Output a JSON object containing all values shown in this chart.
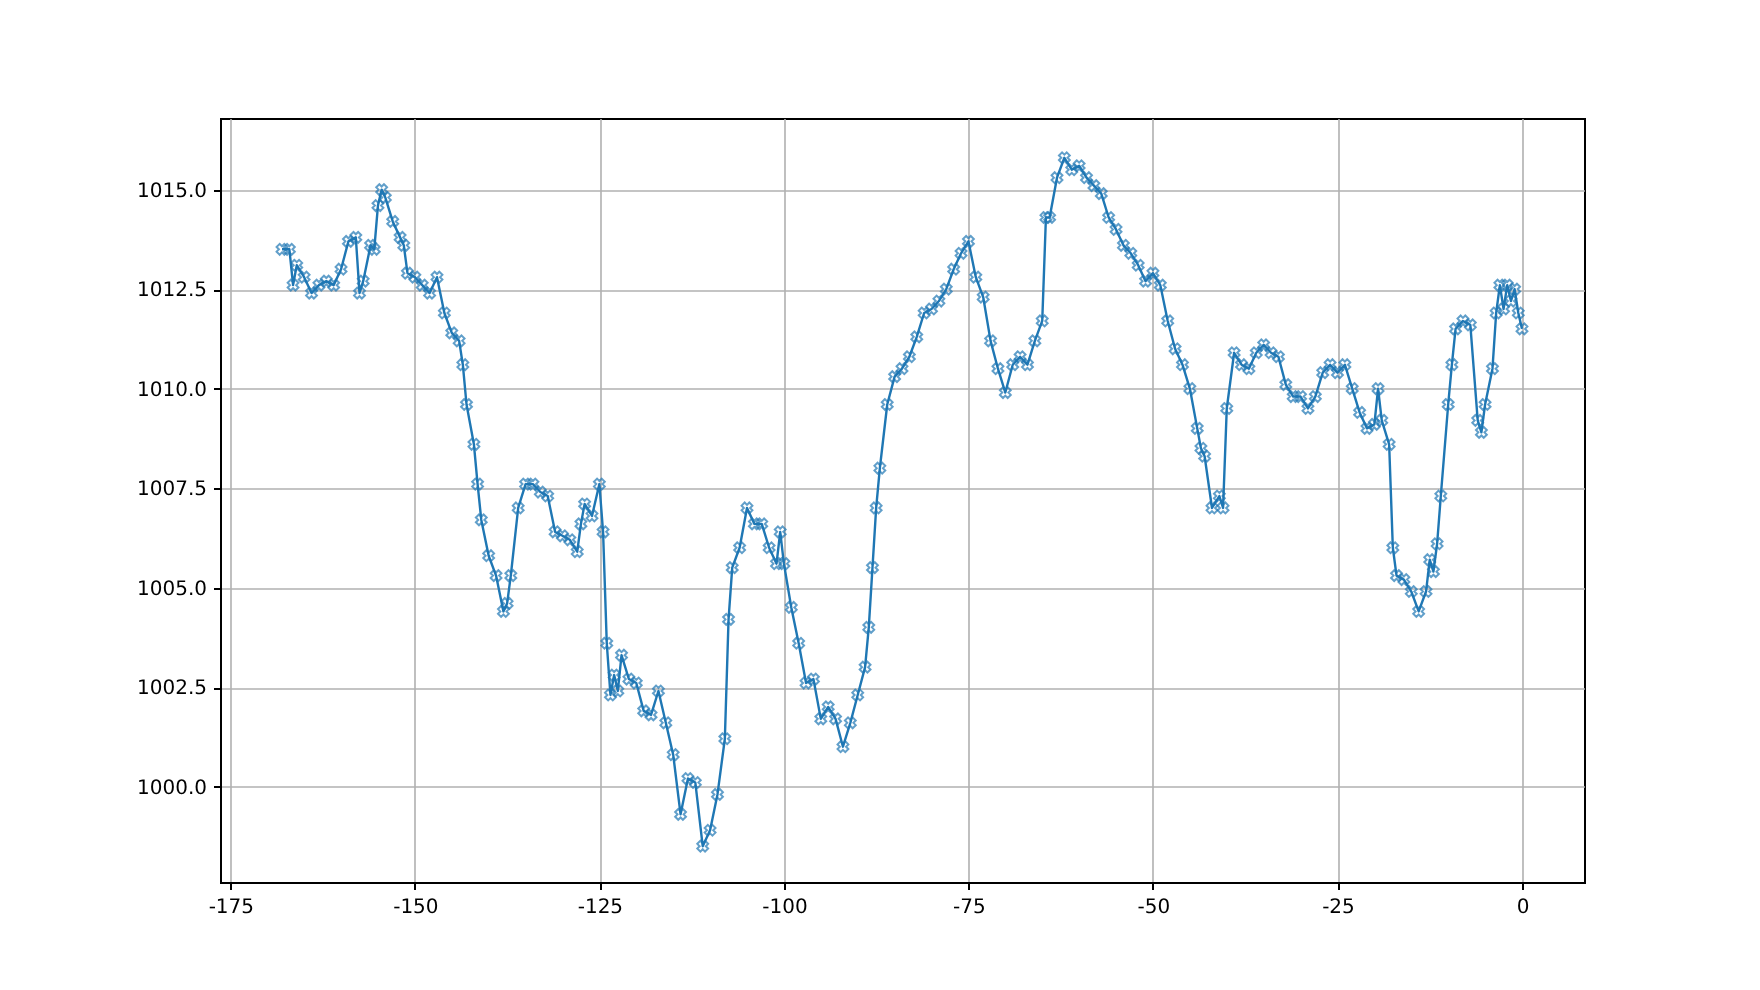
{
  "chart_data": {
    "type": "line",
    "marker": "cross",
    "grid": true,
    "xlim": [
      -176.4,
      8.4
    ],
    "xticks": [
      -175,
      -150,
      -125,
      -100,
      -75,
      -50,
      -25,
      0
    ],
    "ylim": [
      997.6,
      1016.8
    ],
    "yticks": [
      {
        "value": 1000,
        "label": "1000.0"
      },
      {
        "value": 1002.5,
        "label": "1002.5"
      },
      {
        "value": 1005,
        "label": "1005.0"
      },
      {
        "value": 1007.5,
        "label": "1007.5"
      },
      {
        "value": 1010,
        "label": "1010.0"
      },
      {
        "value": 1012.5,
        "label": "1012.5"
      },
      {
        "value": 1015,
        "label": "1015.0"
      }
    ],
    "x": [
      -168,
      -167,
      -166.5,
      -166,
      -165,
      -164,
      -163,
      -162,
      -161,
      -160,
      -159,
      -158,
      -157.5,
      -157,
      -156,
      -155.5,
      -155,
      -154.5,
      -154,
      -153,
      -152,
      -151.5,
      -151,
      -150,
      -149,
      -148,
      -147,
      -146,
      -145,
      -144,
      -143.5,
      -143,
      -142,
      -141.5,
      -141,
      -140,
      -139,
      -138,
      -137.5,
      -137,
      -136,
      -135,
      -134,
      -133,
      -132,
      -131,
      -130,
      -129,
      -128,
      -127.5,
      -127,
      -126,
      -125,
      -124.5,
      -124,
      -123.5,
      -123,
      -122.5,
      -122,
      -121,
      -120,
      -119,
      -118,
      -117,
      -116,
      -115,
      -114,
      -113,
      -112,
      -111,
      -110,
      -109,
      -108,
      -107.5,
      -107,
      -106,
      -105,
      -104,
      -103,
      -102,
      -101,
      -100.5,
      -100,
      -99,
      -98,
      -97,
      -96,
      -95,
      -94,
      -93,
      -92,
      -91,
      -90,
      -89,
      -88.5,
      -88,
      -87.5,
      -87,
      -86,
      -85,
      -84,
      -83,
      -82,
      -81,
      -80,
      -79,
      -78,
      -77,
      -76,
      -75,
      -74,
      -73,
      -72,
      -71,
      -70,
      -69,
      -68,
      -67,
      -66,
      -65,
      -64.5,
      -64,
      -63,
      -62,
      -61,
      -60,
      -59,
      -58,
      -57,
      -56,
      -55,
      -54,
      -53,
      -52,
      -51,
      -50,
      -49,
      -48,
      -47,
      -46,
      -45,
      -44,
      -43.5,
      -43,
      -42,
      -41,
      -40.5,
      -40,
      -39,
      -38,
      -37,
      -36,
      -35,
      -34,
      -33,
      -32,
      -31,
      -30,
      -29,
      -28,
      -27,
      -26,
      -25,
      -24,
      -23,
      -22,
      -21,
      -20,
      -19.5,
      -19,
      -18,
      -17.5,
      -17,
      -16,
      -15,
      -14,
      -13,
      -12.5,
      -12,
      -11.5,
      -11,
      -10,
      -9.5,
      -9,
      -8,
      -7,
      -6,
      -5.5,
      -5,
      -4,
      -3.5,
      -3,
      -2.5,
      -2,
      -1.5,
      -1,
      -0.5,
      0
    ],
    "series": [
      {
        "color": "#1f77b4",
        "values": [
          1013.5,
          1013.5,
          1012.6,
          1013.1,
          1012.8,
          1012.4,
          1012.6,
          1012.7,
          1012.6,
          1013.0,
          1013.7,
          1013.8,
          1012.4,
          1012.7,
          1013.6,
          1013.5,
          1014.6,
          1015.0,
          1014.8,
          1014.2,
          1013.8,
          1013.6,
          1012.9,
          1012.8,
          1012.6,
          1012.4,
          1012.8,
          1011.9,
          1011.4,
          1011.2,
          1010.6,
          1009.6,
          1008.6,
          1007.6,
          1006.7,
          1005.8,
          1005.3,
          1004.4,
          1004.6,
          1005.3,
          1007.0,
          1007.6,
          1007.6,
          1007.4,
          1007.3,
          1006.4,
          1006.3,
          1006.2,
          1005.9,
          1006.6,
          1007.1,
          1006.8,
          1007.6,
          1006.4,
          1003.6,
          1002.3,
          1002.8,
          1002.4,
          1003.3,
          1002.7,
          1002.6,
          1001.9,
          1001.8,
          1002.4,
          1001.6,
          1000.8,
          999.3,
          1000.2,
          1000.1,
          998.5,
          998.9,
          999.8,
          1001.2,
          1004.2,
          1005.5,
          1006.0,
          1007.0,
          1006.6,
          1006.6,
          1006.0,
          1005.6,
          1006.4,
          1005.6,
          1004.5,
          1003.6,
          1002.6,
          1002.7,
          1001.7,
          1002.0,
          1001.7,
          1001.0,
          1001.6,
          1002.3,
          1003.0,
          1004.0,
          1005.5,
          1007.0,
          1008.0,
          1009.6,
          1010.3,
          1010.5,
          1010.8,
          1011.3,
          1011.9,
          1012.0,
          1012.2,
          1012.5,
          1013.0,
          1013.4,
          1013.7,
          1012.8,
          1012.3,
          1011.2,
          1010.5,
          1009.9,
          1010.6,
          1010.8,
          1010.6,
          1011.2,
          1011.7,
          1014.3,
          1014.3,
          1015.3,
          1015.8,
          1015.5,
          1015.6,
          1015.3,
          1015.1,
          1014.9,
          1014.3,
          1014.0,
          1013.6,
          1013.4,
          1013.1,
          1012.7,
          1012.9,
          1012.6,
          1011.7,
          1011.0,
          1010.6,
          1010.0,
          1009.0,
          1008.5,
          1008.3,
          1007.0,
          1007.3,
          1007.0,
          1009.5,
          1010.9,
          1010.6,
          1010.5,
          1010.9,
          1011.1,
          1010.9,
          1010.8,
          1010.1,
          1009.8,
          1009.8,
          1009.5,
          1009.8,
          1010.4,
          1010.6,
          1010.4,
          1010.6,
          1010.0,
          1009.4,
          1009.0,
          1009.1,
          1010.0,
          1009.2,
          1008.6,
          1006.0,
          1005.3,
          1005.2,
          1004.9,
          1004.4,
          1004.9,
          1005.7,
          1005.4,
          1006.1,
          1007.3,
          1009.6,
          1010.6,
          1011.5,
          1011.7,
          1011.6,
          1009.2,
          1008.9,
          1009.6,
          1010.5,
          1011.9,
          1012.6,
          1012.0,
          1012.6,
          1012.2,
          1012.5,
          1011.9,
          1011.5
        ]
      }
    ]
  }
}
